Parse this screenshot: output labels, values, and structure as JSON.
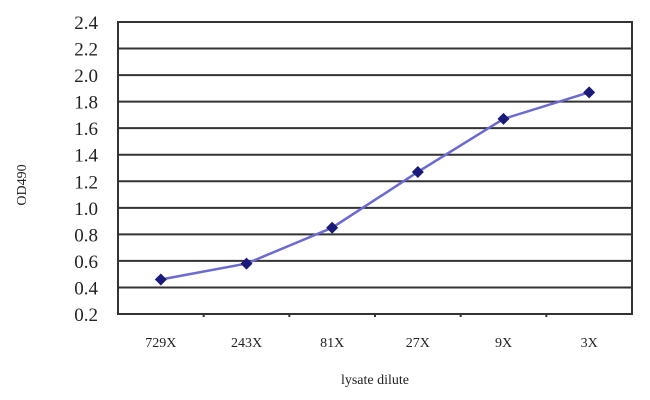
{
  "chart_data": {
    "type": "line",
    "title": "",
    "xlabel": "lysate dilute",
    "ylabel": "OD490",
    "categories": [
      "729X",
      "243X",
      "81X",
      "27X",
      "9X",
      "3X"
    ],
    "series": [
      {
        "values": [
          0.46,
          0.58,
          0.85,
          1.27,
          1.67,
          1.87
        ],
        "color": "#1a1a7a",
        "line_color": "#6a6ad0"
      }
    ],
    "ylim": [
      0.2,
      2.4
    ],
    "yticks": [
      "0.2",
      "0.4",
      "0.6",
      "0.8",
      "1.0",
      "1.2",
      "1.4",
      "1.6",
      "1.8",
      "2.0",
      "2.2",
      "2.4"
    ],
    "grid": true,
    "legend": "none"
  }
}
